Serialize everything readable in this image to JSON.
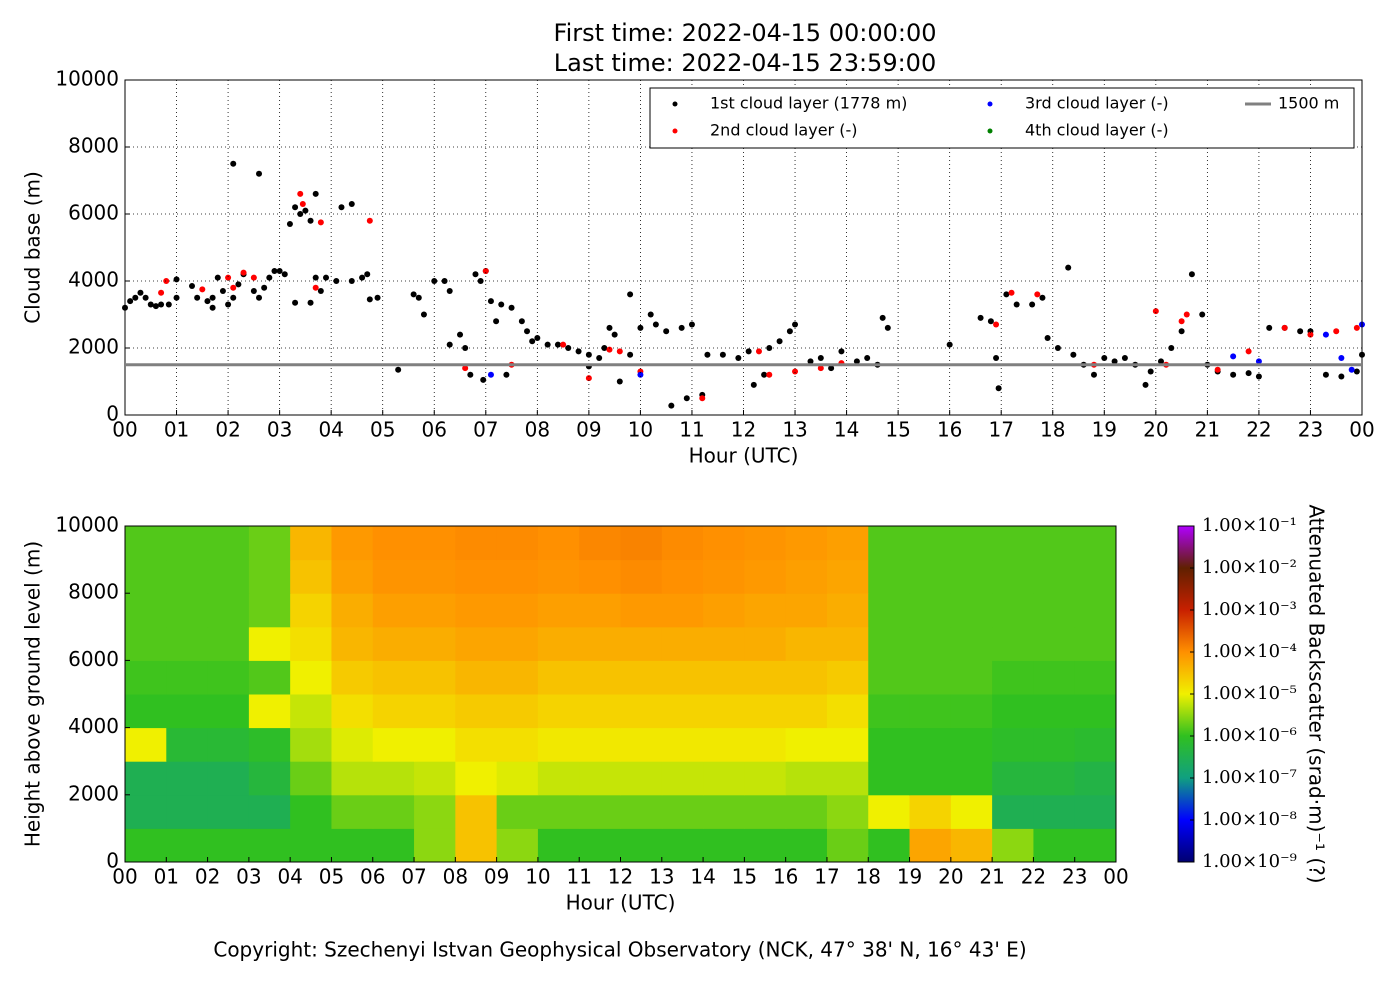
{
  "chart_data": [
    {
      "type": "scatter",
      "title": "First time: 2022-04-15 00:00:00",
      "subtitle": "Last time: 2022-04-15 23:59:00",
      "xlabel": "Hour (UTC)",
      "ylabel": "Cloud base (m)",
      "xlim": [
        0,
        24
      ],
      "ylim": [
        0,
        10000
      ],
      "xticks": [
        {
          "value": 0,
          "label": "00"
        },
        {
          "value": 1,
          "label": "01"
        },
        {
          "value": 2,
          "label": "02"
        },
        {
          "value": 3,
          "label": "03"
        },
        {
          "value": 4,
          "label": "04"
        },
        {
          "value": 5,
          "label": "05"
        },
        {
          "value": 6,
          "label": "06"
        },
        {
          "value": 7,
          "label": "07"
        },
        {
          "value": 8,
          "label": "08"
        },
        {
          "value": 9,
          "label": "09"
        },
        {
          "value": 10,
          "label": "10"
        },
        {
          "value": 11,
          "label": "11"
        },
        {
          "value": 12,
          "label": "12"
        },
        {
          "value": 13,
          "label": "13"
        },
        {
          "value": 14,
          "label": "14"
        },
        {
          "value": 15,
          "label": "15"
        },
        {
          "value": 16,
          "label": "16"
        },
        {
          "value": 17,
          "label": "17"
        },
        {
          "value": 18,
          "label": "18"
        },
        {
          "value": 19,
          "label": "19"
        },
        {
          "value": 20,
          "label": "20"
        },
        {
          "value": 21,
          "label": "21"
        },
        {
          "value": 22,
          "label": "22"
        },
        {
          "value": 23,
          "label": "23"
        },
        {
          "value": 24,
          "label": "00"
        }
      ],
      "yticks": [
        0,
        2000,
        4000,
        6000,
        8000,
        10000
      ],
      "grid": true,
      "legend": "upper right",
      "series": [
        {
          "name": "1st cloud layer (1778 m)",
          "color": "#000000",
          "x": [
            0.0,
            0.1,
            0.2,
            0.3,
            0.4,
            0.5,
            0.6,
            0.7,
            0.85,
            1.0,
            1.0,
            1.3,
            1.4,
            1.6,
            1.7,
            1.7,
            1.8,
            1.9,
            2.0,
            2.1,
            2.1,
            2.2,
            2.3,
            2.5,
            2.6,
            2.6,
            2.7,
            2.8,
            2.9,
            3.0,
            3.1,
            3.2,
            3.3,
            3.4,
            3.3,
            3.5,
            3.6,
            3.6,
            3.7,
            3.7,
            3.8,
            3.9,
            4.1,
            4.2,
            4.4,
            4.4,
            4.6,
            4.7,
            4.75,
            4.9,
            5.3,
            5.6,
            5.7,
            5.8,
            6.0,
            6.2,
            6.3,
            6.3,
            6.5,
            6.6,
            6.7,
            6.8,
            6.9,
            6.95,
            7.0,
            7.1,
            7.2,
            7.3,
            7.4,
            7.5,
            7.7,
            7.8,
            7.9,
            8.0,
            8.2,
            8.4,
            8.6,
            8.8,
            9.0,
            9.0,
            9.2,
            9.3,
            9.4,
            9.5,
            9.6,
            9.8,
            9.8,
            10.0,
            10.2,
            10.3,
            10.5,
            10.6,
            10.8,
            10.9,
            11.0,
            11.2,
            11.3,
            11.6,
            11.9,
            12.1,
            12.2,
            12.4,
            12.5,
            12.7,
            12.9,
            13.0,
            13.3,
            13.5,
            13.7,
            13.9,
            14.2,
            14.4,
            14.6,
            14.7,
            14.8,
            16.0,
            16.6,
            16.8,
            16.9,
            16.95,
            17.1,
            17.3,
            17.6,
            17.8,
            17.9,
            18.1,
            18.3,
            18.4,
            18.6,
            18.8,
            19.0,
            19.2,
            19.4,
            19.6,
            19.8,
            19.9,
            20.1,
            20.3,
            20.5,
            20.7,
            20.9,
            21.0,
            21.2,
            21.5,
            21.8,
            22.0,
            22.2,
            22.5,
            22.8,
            23.0,
            23.3,
            23.6,
            23.9,
            24.0
          ],
          "values": [
            3200,
            3400,
            3500,
            3650,
            3500,
            3300,
            3250,
            3300,
            3300,
            3500,
            4050,
            3850,
            3500,
            3400,
            3200,
            3500,
            4100,
            3700,
            3300,
            7500,
            3500,
            3900,
            4200,
            3700,
            3500,
            7200,
            3800,
            4100,
            4300,
            4300,
            4200,
            5700,
            6200,
            6000,
            3350,
            6100,
            5800,
            3350,
            6600,
            4100,
            3700,
            4100,
            4000,
            6200,
            6300,
            4000,
            4100,
            4200,
            3450,
            3500,
            1350,
            3600,
            3500,
            3000,
            4000,
            4000,
            3700,
            2100,
            2400,
            2000,
            1200,
            4200,
            4000,
            1050,
            4300,
            3400,
            2800,
            3300,
            1200,
            3200,
            2800,
            2500,
            2200,
            2300,
            2100,
            2100,
            2000,
            1900,
            1800,
            1450,
            1700,
            2000,
            2600,
            2400,
            1000,
            3600,
            1800,
            2600,
            3000,
            2700,
            2500,
            280,
            2600,
            500,
            2700,
            600,
            1800,
            1800,
            1700,
            1900,
            900,
            1200,
            2000,
            2200,
            2500,
            2700,
            1600,
            1700,
            1400,
            1900,
            1600,
            1700,
            1500,
            2900,
            2600,
            2100,
            2900,
            2800,
            1700,
            800,
            3600,
            3300,
            3300,
            3500,
            2300,
            2000,
            4400,
            1800,
            1500,
            1200,
            1700,
            1600,
            1700,
            1500,
            900,
            1300,
            1600,
            2000,
            2500,
            4200,
            3000,
            1500,
            1300,
            1200,
            1250,
            1150,
            2600,
            2600,
            2500,
            2500,
            1200,
            1150,
            1300,
            1800
          ]
        },
        {
          "name": "2nd cloud layer (-)",
          "color": "#ff0000",
          "x": [
            0.7,
            0.8,
            1.5,
            2.0,
            2.1,
            2.3,
            2.5,
            3.4,
            3.45,
            3.7,
            3.8,
            4.75,
            6.6,
            7.0,
            7.5,
            8.5,
            9.0,
            9.4,
            9.6,
            10.0,
            11.2,
            12.3,
            12.5,
            13.0,
            13.5,
            13.9,
            16.9,
            17.2,
            17.7,
            18.8,
            20.0,
            20.2,
            20.5,
            20.6,
            21.2,
            21.8,
            22.5,
            23.0,
            23.5,
            23.9
          ],
          "values": [
            3650,
            4000,
            3750,
            4100,
            3800,
            4250,
            4100,
            6600,
            6300,
            3800,
            5750,
            5800,
            1400,
            4300,
            1500,
            2100,
            1100,
            1950,
            1900,
            1300,
            500,
            1900,
            1200,
            1300,
            1400,
            1550,
            2700,
            3650,
            3600,
            1500,
            3100,
            1500,
            2800,
            3000,
            1350,
            1900,
            2600,
            2400,
            2500,
            2600
          ]
        },
        {
          "name": "3rd cloud layer (-)",
          "color": "#0000ff",
          "x": [
            7.1,
            10.0,
            21.5,
            22.0,
            23.3,
            23.6,
            23.8,
            24.0
          ],
          "values": [
            1200,
            1200,
            1750,
            1600,
            2400,
            1700,
            1350,
            2700
          ]
        },
        {
          "name": "4th cloud layer (-)",
          "color": "#008000",
          "x": [],
          "values": []
        }
      ],
      "hlines": [
        {
          "name": "1500 m",
          "value": 1500,
          "color": "#808080"
        }
      ]
    },
    {
      "type": "heatmap",
      "xlabel": "Hour (UTC)",
      "ylabel": "Height above ground level (m)",
      "xlim": [
        0,
        24
      ],
      "ylim": [
        0,
        10000
      ],
      "xticks": [
        {
          "value": 0,
          "label": "00"
        },
        {
          "value": 1,
          "label": "01"
        },
        {
          "value": 2,
          "label": "02"
        },
        {
          "value": 3,
          "label": "03"
        },
        {
          "value": 4,
          "label": "04"
        },
        {
          "value": 5,
          "label": "05"
        },
        {
          "value": 6,
          "label": "06"
        },
        {
          "value": 7,
          "label": "07"
        },
        {
          "value": 8,
          "label": "08"
        },
        {
          "value": 9,
          "label": "09"
        },
        {
          "value": 10,
          "label": "10"
        },
        {
          "value": 11,
          "label": "11"
        },
        {
          "value": 12,
          "label": "12"
        },
        {
          "value": 13,
          "label": "13"
        },
        {
          "value": 14,
          "label": "14"
        },
        {
          "value": 15,
          "label": "15"
        },
        {
          "value": 16,
          "label": "16"
        },
        {
          "value": 17,
          "label": "17"
        },
        {
          "value": 18,
          "label": "18"
        },
        {
          "value": 19,
          "label": "19"
        },
        {
          "value": 20,
          "label": "20"
        },
        {
          "value": 21,
          "label": "21"
        },
        {
          "value": 22,
          "label": "22"
        },
        {
          "value": 23,
          "label": "23"
        },
        {
          "value": 24,
          "label": "00"
        }
      ],
      "yticks": [
        0,
        2000,
        4000,
        6000,
        8000,
        10000
      ],
      "z": [
        [
          1e-06,
          1e-06,
          1e-06,
          1e-06,
          1e-06,
          1e-06,
          1e-06,
          3e-06,
          3e-05,
          3e-06,
          1e-06,
          1e-06,
          1e-06,
          1e-06,
          1e-06,
          1e-06,
          1e-06,
          2e-06,
          1e-06,
          6e-05,
          4e-05,
          3e-06,
          1e-06,
          1e-06
        ],
        [
          3e-07,
          3e-07,
          3e-07,
          3e-07,
          1e-06,
          2e-06,
          2e-06,
          3e-06,
          3e-05,
          2e-06,
          2e-06,
          2e-06,
          2e-06,
          2e-06,
          2e-06,
          2e-06,
          2e-06,
          3e-06,
          1e-05,
          2e-05,
          1e-05,
          3e-07,
          3e-07,
          3e-07
        ],
        [
          3e-07,
          3e-07,
          3e-07,
          5e-07,
          2e-06,
          5e-06,
          5e-06,
          6e-06,
          1e-05,
          8e-06,
          6e-06,
          6e-06,
          6e-06,
          6e-06,
          6e-06,
          6e-06,
          5e-06,
          5e-06,
          1e-06,
          1e-06,
          1e-06,
          5e-07,
          5e-07,
          4e-07
        ],
        [
          1e-05,
          6e-07,
          6e-07,
          8e-07,
          4e-06,
          8e-06,
          1e-05,
          1e-05,
          1.5e-05,
          1.5e-05,
          1.2e-05,
          1.2e-05,
          1.2e-05,
          1.2e-05,
          1.2e-05,
          1.2e-05,
          1e-05,
          1e-05,
          1e-06,
          1e-06,
          1e-06,
          8e-07,
          8e-07,
          7e-07
        ],
        [
          1e-06,
          1e-06,
          1e-06,
          1e-05,
          6e-06,
          1.5e-05,
          2e-05,
          2e-05,
          2.5e-05,
          2.5e-05,
          2e-05,
          2e-05,
          2e-05,
          2e-05,
          2e-05,
          2e-05,
          2e-05,
          1.5e-05,
          1.2e-06,
          1.2e-06,
          1.2e-06,
          1e-06,
          1e-06,
          1e-06
        ],
        [
          1.2e-06,
          1.2e-06,
          1.2e-06,
          1.5e-06,
          1e-05,
          2.5e-05,
          3e-05,
          3e-05,
          4e-05,
          4e-05,
          3e-05,
          3e-05,
          3e-05,
          3e-05,
          3e-05,
          3e-05,
          3e-05,
          2.5e-05,
          1.5e-06,
          1.5e-06,
          1.5e-06,
          1.2e-06,
          1.2e-06,
          1.2e-06
        ],
        [
          1.5e-06,
          1.5e-06,
          1.5e-06,
          1e-05,
          1.5e-05,
          4e-05,
          5e-05,
          5e-05,
          6e-05,
          6e-05,
          5e-05,
          5e-05,
          5e-05,
          5e-05,
          5e-05,
          5e-05,
          4e-05,
          4e-05,
          1.5e-06,
          1.5e-06,
          1.5e-06,
          1.5e-06,
          1.5e-06,
          1.5e-06
        ],
        [
          1.5e-06,
          1.5e-06,
          1.5e-06,
          2e-06,
          2e-05,
          5e-05,
          7e-05,
          7e-05,
          8e-05,
          8e-05,
          7e-05,
          7e-05,
          8e-05,
          8e-05,
          7e-05,
          6e-05,
          6e-05,
          5e-05,
          1.5e-06,
          1.5e-06,
          1.5e-06,
          1.5e-06,
          1.5e-06,
          1.5e-06
        ],
        [
          1.5e-06,
          1.5e-06,
          1.5e-06,
          2e-06,
          3e-05,
          7e-05,
          9e-05,
          9e-05,
          0.0001,
          0.0001,
          9e-05,
          0.0001,
          0.00011,
          0.0001,
          9e-05,
          8e-05,
          7e-05,
          6e-05,
          1.5e-06,
          1.5e-06,
          1.5e-06,
          1.5e-06,
          1.5e-06,
          1.5e-06
        ],
        [
          1.5e-06,
          1.5e-06,
          1.5e-06,
          2e-06,
          4e-05,
          8e-05,
          0.0001,
          0.0001,
          0.00011,
          0.00011,
          0.0001,
          0.00012,
          0.00013,
          0.00011,
          0.0001,
          9e-05,
          8e-05,
          7e-05,
          1.5e-06,
          1.5e-06,
          1.5e-06,
          1.5e-06,
          1.5e-06,
          1.5e-06
        ]
      ],
      "colorbar": {
        "label": "Attenuated Backscatter (srad·m)⁻¹ (?)",
        "scale": "log",
        "lim": [
          1e-09,
          0.1
        ],
        "ticks": [
          {
            "value": 1e-09,
            "label": "1.00×10⁻⁹"
          },
          {
            "value": 1e-08,
            "label": "1.00×10⁻⁸"
          },
          {
            "value": 1e-07,
            "label": "1.00×10⁻⁷"
          },
          {
            "value": 1e-06,
            "label": "1.00×10⁻⁶"
          },
          {
            "value": 1e-05,
            "label": "1.00×10⁻⁵"
          },
          {
            "value": 0.0001,
            "label": "1.00×10⁻⁴"
          },
          {
            "value": 0.001,
            "label": "1.00×10⁻³"
          },
          {
            "value": 0.01,
            "label": "1.00×10⁻²"
          },
          {
            "value": 0.1,
            "label": "1.00×10⁻¹"
          }
        ],
        "colors": [
          "#000070",
          "#0000ff",
          "#10a080",
          "#30c020",
          "#f0f000",
          "#ff9000",
          "#c82000",
          "#602000",
          "#b000ff"
        ]
      }
    }
  ],
  "footer": "Copyright: Szechenyi Istvan Geophysical Observatory (NCK, 47° 38' N, 16° 43' E)"
}
